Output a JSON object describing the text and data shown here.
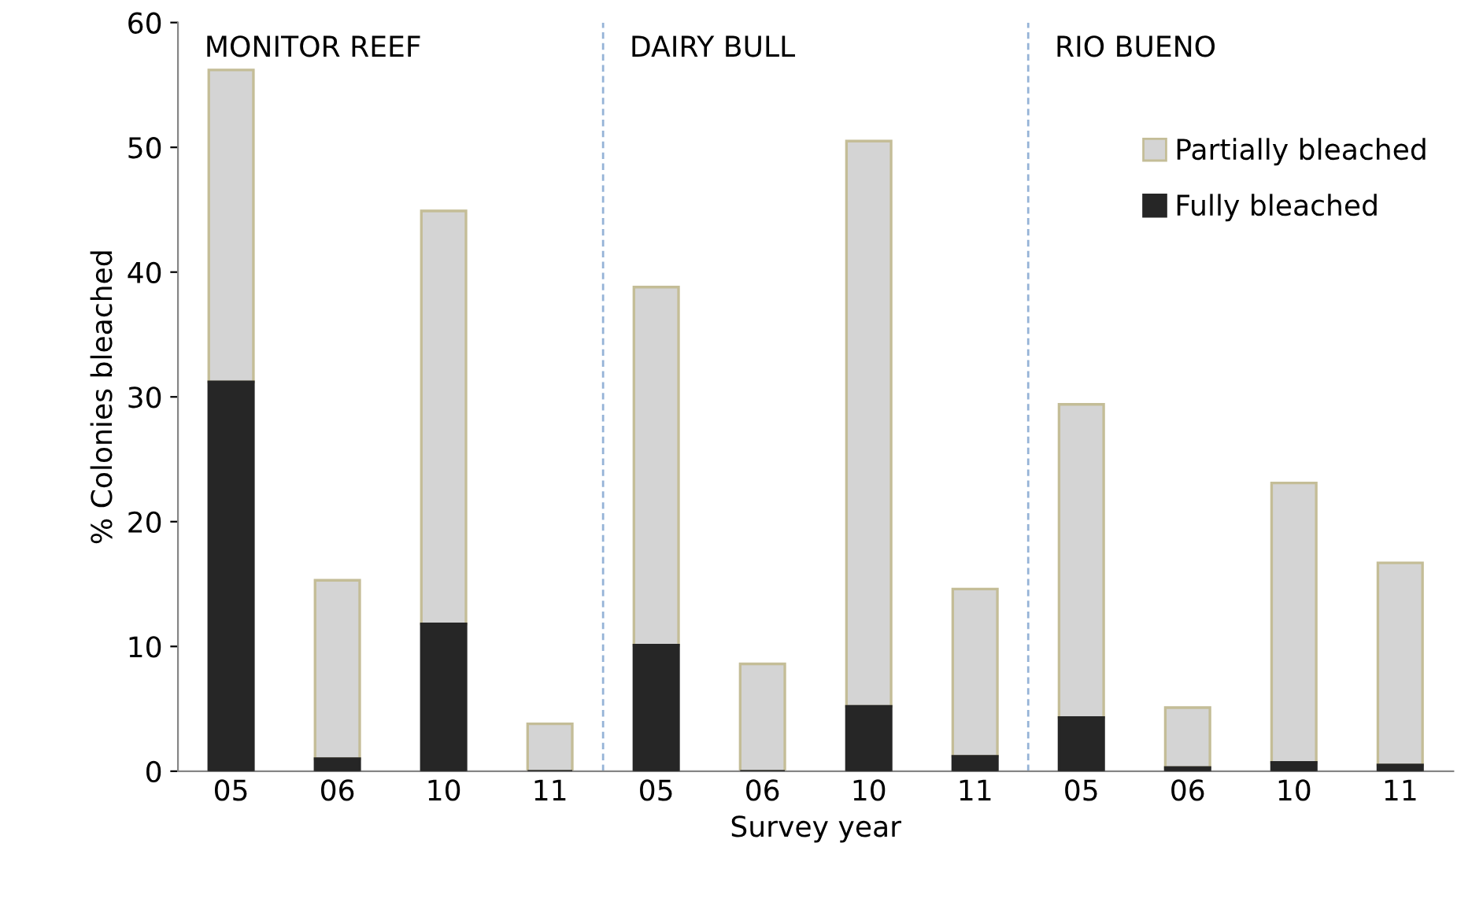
{
  "chart_data": {
    "type": "bar",
    "stacked": true,
    "xlabel": "Survey year",
    "ylabel": "% Colonies bleached",
    "categories": [
      "05",
      "06",
      "10",
      "11",
      "05",
      "06",
      "10",
      "11",
      "05",
      "06",
      "10",
      "11"
    ],
    "series": [
      {
        "name": "Fully bleached",
        "color": "#262626",
        "values": [
          31.2,
          1.0,
          11.8,
          0,
          10.1,
          0,
          5.2,
          1.2,
          4.3,
          0.3,
          0.7,
          0.5
        ]
      },
      {
        "name": "Partially bleached",
        "color": "#d4d4d4",
        "values": [
          25.0,
          14.3,
          33.1,
          3.8,
          28.7,
          8.6,
          45.3,
          13.4,
          25.1,
          4.8,
          22.4,
          16.2
        ]
      }
    ],
    "annotations": [
      "MONITOR REEF",
      "DAIRY BULL",
      "RIO BUENO"
    ],
    "ylim": [
      0,
      60
    ],
    "yticks": [
      0,
      10,
      20,
      30,
      40,
      50,
      60
    ],
    "grid": false,
    "legend": "top right"
  }
}
